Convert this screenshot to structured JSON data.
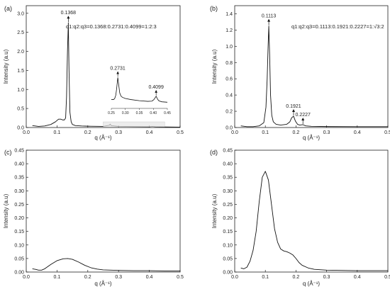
{
  "chart_data": [
    {
      "panel_label": "(a)",
      "type": "line",
      "xlabel": "q (Å⁻¹)",
      "ylabel": "Intensity (a.u)",
      "xlim": [
        0.0,
        0.5
      ],
      "ylim": [
        0.0,
        3.2
      ],
      "xticks": [
        "0.0",
        "0.1",
        "0.2",
        "0.3",
        "0.4",
        "0.5"
      ],
      "yticks": [
        "0.0",
        "0.5",
        "1.0",
        "1.5",
        "2.0",
        "2.5",
        "3.0"
      ],
      "series": [
        {
          "x": [
            0.02,
            0.04,
            0.06,
            0.08,
            0.095,
            0.105,
            0.112,
            0.118,
            0.124,
            0.128,
            0.131,
            0.134,
            0.1368,
            0.139,
            0.142,
            0.146,
            0.15,
            0.16,
            0.18,
            0.2,
            0.25,
            0.27,
            0.2731,
            0.276,
            0.3,
            0.35,
            0.4,
            0.4099,
            0.42,
            0.45,
            0.5
          ],
          "y": [
            0.05,
            0.03,
            0.04,
            0.08,
            0.15,
            0.22,
            0.22,
            0.2,
            0.2,
            0.25,
            0.8,
            2.0,
            2.75,
            1.5,
            0.4,
            0.15,
            0.08,
            0.05,
            0.04,
            0.035,
            0.03,
            0.06,
            0.09,
            0.05,
            0.03,
            0.025,
            0.02,
            0.03,
            0.02,
            0.015,
            0.01
          ]
        }
      ],
      "peaks": [
        {
          "x": 0.1368,
          "y": 2.75,
          "label": "0.1368"
        }
      ],
      "ratio_text": "q1:q2:q3=0.1368:0.2731:0.4099=1:2:3",
      "inset": {
        "xlim": [
          0.25,
          0.45
        ],
        "xticks": [
          "0.25",
          "0.30",
          "0.35",
          "0.40",
          "0.45"
        ],
        "x": [
          0.25,
          0.258,
          0.262,
          0.266,
          0.269,
          0.2731,
          0.277,
          0.28,
          0.285,
          0.29,
          0.3,
          0.32,
          0.35,
          0.38,
          0.395,
          0.402,
          0.4099,
          0.416,
          0.42,
          0.43,
          0.45
        ],
        "y": [
          0.04,
          0.04,
          0.045,
          0.06,
          0.09,
          0.14,
          0.1,
          0.07,
          0.055,
          0.05,
          0.045,
          0.04,
          0.035,
          0.032,
          0.033,
          0.04,
          0.055,
          0.04,
          0.034,
          0.03,
          0.028
        ],
        "ylim": [
          0.0,
          0.18
        ],
        "peaks": [
          {
            "x": 0.2731,
            "y": 0.14,
            "label": "0.2731"
          },
          {
            "x": 0.4099,
            "y": 0.055,
            "label": "0.4099"
          }
        ]
      }
    },
    {
      "panel_label": "(b)",
      "type": "line",
      "xlabel": "q (Å⁻¹)",
      "ylabel": "Intensity (a.u)",
      "xlim": [
        0.0,
        0.5
      ],
      "ylim": [
        0.0,
        1.5
      ],
      "xticks": [
        "0.0",
        "0.1",
        "0.2",
        "0.3",
        "0.4",
        "0.5"
      ],
      "yticks": [
        "0.0",
        "0.2",
        "0.4",
        "0.6",
        "0.8",
        "1.0",
        "1.2",
        "1.4"
      ],
      "series": [
        {
          "x": [
            0.02,
            0.04,
            0.06,
            0.08,
            0.095,
            0.102,
            0.106,
            0.109,
            0.1113,
            0.114,
            0.117,
            0.121,
            0.126,
            0.135,
            0.15,
            0.17,
            0.18,
            0.186,
            0.1921,
            0.198,
            0.205,
            0.212,
            0.2227,
            0.232,
            0.25,
            0.3,
            0.4,
            0.5
          ],
          "y": [
            0.02,
            0.01,
            0.01,
            0.02,
            0.06,
            0.25,
            0.6,
            1.0,
            1.25,
            0.9,
            0.4,
            0.15,
            0.07,
            0.04,
            0.03,
            0.04,
            0.07,
            0.12,
            0.14,
            0.08,
            0.04,
            0.03,
            0.035,
            0.02,
            0.015,
            0.012,
            0.01,
            0.01
          ]
        }
      ],
      "peaks": [
        {
          "x": 0.1113,
          "y": 1.25,
          "label": "0.1113"
        },
        {
          "x": 0.1921,
          "y": 0.14,
          "label": "0.1921"
        },
        {
          "x": 0.2227,
          "y": 0.035,
          "label": "0.2227"
        }
      ],
      "ratio_text": "q1:q2:q3=0.1113:0.1921:0.2227=1:√3:2"
    },
    {
      "panel_label": "(c)",
      "type": "line",
      "xlabel": "q (Å⁻¹)",
      "ylabel": "Intensity (a.u)",
      "xlim": [
        0.0,
        0.5
      ],
      "ylim": [
        0.0,
        0.45
      ],
      "xticks": [
        "0.0",
        "0.1",
        "0.2",
        "0.3",
        "0.4",
        "0.5"
      ],
      "yticks": [
        "0.00",
        "0.05",
        "0.10",
        "0.15",
        "0.20",
        "0.25",
        "0.30",
        "0.35",
        "0.40",
        "0.45"
      ],
      "series": [
        {
          "x": [
            0.02,
            0.03,
            0.04,
            0.05,
            0.06,
            0.08,
            0.1,
            0.12,
            0.135,
            0.15,
            0.17,
            0.19,
            0.21,
            0.23,
            0.25,
            0.3,
            0.35,
            0.4,
            0.45,
            0.5
          ],
          "y": [
            0.012,
            0.01,
            0.007,
            0.007,
            0.012,
            0.028,
            0.042,
            0.049,
            0.05,
            0.047,
            0.037,
            0.025,
            0.016,
            0.011,
            0.008,
            0.006,
            0.005,
            0.005,
            0.004,
            0.004
          ]
        }
      ]
    },
    {
      "panel_label": "(d)",
      "type": "line",
      "xlabel": "q (Å⁻¹)",
      "ylabel": "Intensity (a.u)",
      "xlim": [
        0.0,
        0.5
      ],
      "ylim": [
        0.0,
        0.45
      ],
      "xticks": [
        "0.0",
        "0.1",
        "0.2",
        "0.3",
        "0.4",
        "0.5"
      ],
      "yticks": [
        "0.00",
        "0.05",
        "0.10",
        "0.15",
        "0.20",
        "0.25",
        "0.30",
        "0.35",
        "0.40",
        "0.45"
      ],
      "series": [
        {
          "x": [
            0.02,
            0.03,
            0.04,
            0.05,
            0.06,
            0.07,
            0.08,
            0.09,
            0.1,
            0.11,
            0.12,
            0.13,
            0.14,
            0.15,
            0.16,
            0.17,
            0.18,
            0.19,
            0.2,
            0.21,
            0.22,
            0.24,
            0.26,
            0.3,
            0.35,
            0.4,
            0.45,
            0.5
          ],
          "y": [
            0.015,
            0.012,
            0.018,
            0.04,
            0.08,
            0.15,
            0.26,
            0.35,
            0.372,
            0.34,
            0.25,
            0.16,
            0.11,
            0.085,
            0.078,
            0.075,
            0.07,
            0.063,
            0.05,
            0.035,
            0.025,
            0.015,
            0.01,
            0.007,
            0.006,
            0.005,
            0.005,
            0.005
          ]
        }
      ]
    }
  ]
}
